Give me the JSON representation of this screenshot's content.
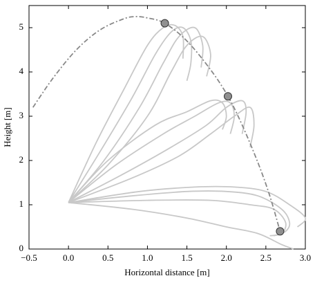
{
  "chart_data": {
    "type": "line",
    "xlabel": "Horizontal distance [m]",
    "ylabel": "Height [m]",
    "xlim": [
      -0.5,
      3.0
    ],
    "ylim": [
      0,
      5.5
    ],
    "xticks": [
      {
        "value": -0.5,
        "label": "−0.5"
      },
      {
        "value": 0,
        "label": "0.0"
      },
      0.5,
      {
        "value": 1,
        "label": "1.0"
      },
      1.5,
      {
        "value": 2,
        "label": "2.0"
      },
      2.5,
      {
        "value": 3,
        "label": "3.0"
      }
    ],
    "yticks": [
      0,
      1,
      2,
      3,
      4,
      5
    ],
    "grid": false,
    "series": [
      {
        "color": "#c8c8c8",
        "x": [
          0,
          0.4,
          0.8,
          1.1,
          1.3,
          1.45,
          1.55,
          1.55,
          1.5
        ],
        "values": [
          1.05,
          2.2,
          3.4,
          4.4,
          4.9,
          5.0,
          4.7,
          4.2,
          3.8
        ]
      },
      {
        "color": "#c8c8c8",
        "x": [
          0,
          0.45,
          0.9,
          1.2,
          1.4,
          1.6,
          1.7,
          1.68
        ],
        "values": [
          1.05,
          2.0,
          3.2,
          4.2,
          4.8,
          5.0,
          4.6,
          4.1
        ]
      },
      {
        "color": "#c8c8c8",
        "x": [
          0,
          0.5,
          1.0,
          1.3,
          1.5,
          1.7,
          1.8,
          1.75
        ],
        "values": [
          1.05,
          1.9,
          3.0,
          4.0,
          4.6,
          4.8,
          4.4,
          3.9
        ]
      },
      {
        "color": "#c8c8c8",
        "x": [
          0,
          0.35,
          0.7,
          1.0,
          1.2,
          1.35,
          1.45,
          1.45
        ],
        "values": [
          1.05,
          2.4,
          3.6,
          4.6,
          5.0,
          5.05,
          4.8,
          4.3
        ]
      },
      {
        "color": "#c8c8c8",
        "x": [
          0,
          0.6,
          1.2,
          1.6,
          1.9,
          2.05,
          2.1,
          2.05
        ],
        "values": [
          1.05,
          1.9,
          2.6,
          3.0,
          3.3,
          3.3,
          3.0,
          2.6
        ]
      },
      {
        "color": "#c8c8c8",
        "x": [
          0,
          0.7,
          1.3,
          1.75,
          2.0,
          2.2,
          2.25,
          2.2
        ],
        "values": [
          1.05,
          1.7,
          2.3,
          2.8,
          3.2,
          3.35,
          3.1,
          2.6
        ]
      },
      {
        "color": "#c8c8c8",
        "x": [
          0,
          0.5,
          1.1,
          1.5,
          1.8,
          1.95,
          2.0,
          1.95
        ],
        "values": [
          1.05,
          2.0,
          2.8,
          3.1,
          3.35,
          3.3,
          3.0,
          2.7
        ]
      },
      {
        "color": "#c8c8c8",
        "x": [
          0,
          0.8,
          1.4,
          1.8,
          2.1,
          2.3,
          2.35,
          2.3
        ],
        "values": [
          1.05,
          1.6,
          2.1,
          2.6,
          3.0,
          3.2,
          2.8,
          2.3
        ]
      },
      {
        "color": "#c8c8c8",
        "x": [
          0,
          0.8,
          1.5,
          2.0,
          2.4,
          2.7,
          2.8,
          2.75,
          2.6
        ],
        "values": [
          1.05,
          1.2,
          1.3,
          1.3,
          1.2,
          0.9,
          0.6,
          0.4,
          0.3
        ]
      },
      {
        "color": "#c8c8c8",
        "x": [
          0,
          0.9,
          1.6,
          2.1,
          2.5,
          2.8,
          3.0,
          2.9
        ],
        "values": [
          1.05,
          1.3,
          1.4,
          1.4,
          1.3,
          1.0,
          0.7,
          0.5
        ]
      },
      {
        "color": "#c8c8c8",
        "x": [
          0,
          1.0,
          1.8,
          2.3,
          2.6,
          2.75,
          2.7,
          2.55
        ],
        "values": [
          1.05,
          1.1,
          1.1,
          1.0,
          0.9,
          0.6,
          0.35,
          0.3
        ]
      },
      {
        "color": "#c8c8c8",
        "x": [
          0,
          0.8,
          1.5,
          2.0,
          2.4,
          2.7,
          2.85
        ],
        "values": [
          1.05,
          0.9,
          0.7,
          0.5,
          0.35,
          0.1,
          0.0
        ]
      },
      {
        "color": "#888888",
        "style": "dashdot",
        "x": [
          -0.45,
          -0.2,
          0.1,
          0.4,
          0.7,
          0.85,
          1.0,
          1.22,
          1.5,
          1.8,
          2.02,
          2.2,
          2.4,
          2.55,
          2.68
        ],
        "values": [
          3.2,
          3.85,
          4.5,
          4.95,
          5.2,
          5.25,
          5.22,
          5.1,
          4.7,
          4.05,
          3.45,
          2.8,
          1.95,
          1.2,
          0.4
        ]
      },
      {
        "color": "#909090",
        "mode": "markers",
        "x": [
          1.22,
          2.02,
          2.68
        ],
        "values": [
          5.1,
          3.45,
          0.4
        ]
      }
    ]
  }
}
